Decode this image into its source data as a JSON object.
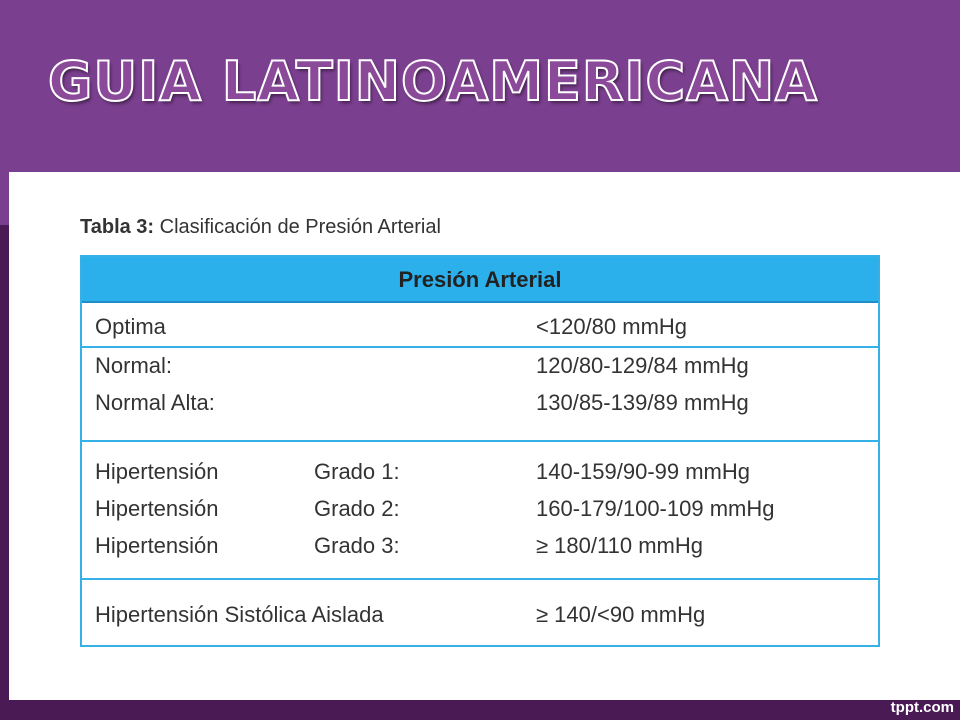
{
  "slide": {
    "title": "GUIA LATINOAMERICANA",
    "watermark": "tppt.com"
  },
  "caption": {
    "label": "Tabla 3:",
    "text": "Clasificación de Presión Arterial"
  },
  "table": {
    "header": "Presión Arterial",
    "rows": [
      {
        "category": "Optima",
        "grade": "",
        "value": "<120/80 mmHg"
      },
      {
        "category": "Normal:",
        "grade": "",
        "value": "120/80-129/84 mmHg"
      },
      {
        "category": "Normal Alta:",
        "grade": "",
        "value": "130/85-139/89 mmHg"
      },
      {
        "category": "Hipertensión",
        "grade": "Grado 1:",
        "value": "140-159/90-99 mmHg"
      },
      {
        "category": "Hipertensión",
        "grade": "Grado 2:",
        "value": "160-179/100-109 mmHg"
      },
      {
        "category": "Hipertensión",
        "grade": "Grado 3:",
        "value": "≥ 180/110 mmHg"
      },
      {
        "category": "Hipertensión Sistólica Aislada",
        "grade": "",
        "value": "≥ 140/<90 mmHg"
      }
    ]
  }
}
